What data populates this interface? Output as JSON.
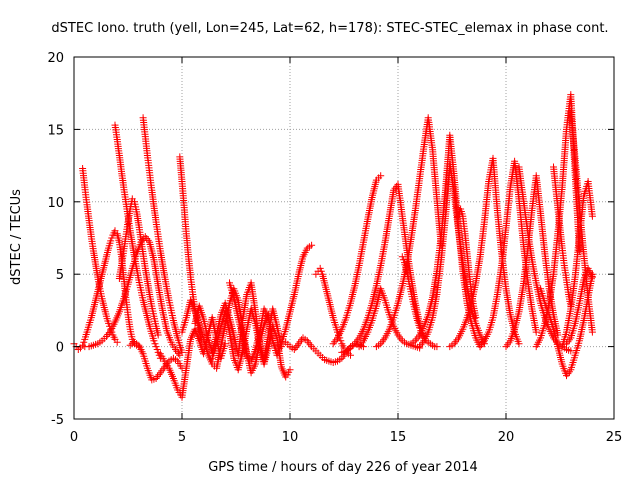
{
  "chart_data": {
    "type": "scatter",
    "title": "dSTEC Iono. truth (yell, Lon=245, Lat=62, h=178): STEC-STEC_elemax in phase cont.",
    "xlabel": "GPS time / hours of day 226 of year 2014",
    "ylabel": "dSTEC  / TECUs",
    "xlim": [
      0,
      25
    ],
    "ylim": [
      -5,
      20
    ],
    "xticks": [
      0,
      5,
      10,
      15,
      20,
      25
    ],
    "yticks": [
      -5,
      0,
      5,
      10,
      15,
      20
    ],
    "xtick_labels": [
      "0",
      "5",
      "10",
      "15",
      "20",
      "25"
    ],
    "ytick_labels": [
      "-5",
      "0",
      "5",
      "10",
      "15",
      "20"
    ],
    "grid": true,
    "marker": "+",
    "colors": {
      "series": "#ff0000",
      "grid": "#a0a0a0",
      "axis": "#000000"
    },
    "series": [
      {
        "x": [
          0.0,
          0.1,
          0.2,
          0.3,
          0.4,
          0.5,
          0.6,
          0.7,
          0.8,
          0.9,
          1.0,
          1.1,
          1.2,
          1.3,
          1.4,
          1.5,
          1.6,
          1.7,
          1.8,
          1.9,
          2.0,
          2.1,
          2.2,
          2.3,
          2.4,
          2.5,
          2.6,
          2.7,
          2.8,
          2.9,
          3.0
        ],
        "y": [
          0.2,
          0.0,
          -0.2,
          -0.1,
          0.1,
          0.5,
          1.0,
          1.5,
          2.0,
          2.6,
          3.2,
          3.8,
          4.4,
          5.0,
          5.6,
          6.2,
          6.8,
          7.3,
          7.7,
          8.0,
          7.8,
          7.2,
          6.2,
          4.8,
          3.4,
          2.2,
          1.2,
          0.5,
          0.2,
          0.1,
          0.0
        ]
      },
      {
        "x": [
          0.4,
          0.5,
          0.6,
          0.7,
          0.8,
          0.9,
          1.0,
          1.1,
          1.2,
          1.3,
          1.4,
          1.5,
          1.6,
          1.7,
          1.8,
          1.9,
          2.0
        ],
        "y": [
          12.3,
          11.0,
          9.8,
          8.7,
          7.6,
          6.6,
          5.7,
          4.8,
          4.0,
          3.3,
          2.7,
          2.1,
          1.6,
          1.2,
          0.8,
          0.5,
          0.3
        ]
      },
      {
        "x": [
          0.5,
          0.7,
          0.9,
          1.1,
          1.3,
          1.5,
          1.7,
          1.9,
          2.1,
          2.3,
          2.5,
          2.7,
          2.9,
          3.1,
          3.3,
          3.5,
          3.7,
          3.9,
          4.1,
          4.3,
          4.5,
          4.7,
          4.9
        ],
        "y": [
          0.0,
          0.0,
          0.1,
          0.2,
          0.4,
          0.7,
          1.1,
          1.7,
          2.4,
          3.3,
          4.3,
          5.4,
          6.4,
          7.2,
          7.6,
          7.2,
          6.0,
          4.2,
          2.5,
          1.1,
          0.3,
          -0.2,
          -0.6
        ]
      },
      {
        "x": [
          1.9,
          2.0,
          2.1,
          2.2,
          2.3,
          2.4,
          2.5,
          2.6,
          2.7,
          2.8,
          2.9,
          3.0,
          3.1,
          3.2,
          3.3,
          3.4,
          3.5,
          3.6,
          3.7,
          3.8,
          3.9,
          4.0
        ],
        "y": [
          15.3,
          14.3,
          13.2,
          12.1,
          11.0,
          10.0,
          9.0,
          8.0,
          7.1,
          6.2,
          5.4,
          4.6,
          3.9,
          3.2,
          2.6,
          2.0,
          1.4,
          0.9,
          0.4,
          0.0,
          -0.4,
          -0.8
        ]
      },
      {
        "x": [
          2.1,
          2.2,
          2.3,
          2.4,
          2.5,
          2.6,
          2.7,
          2.8,
          2.9,
          3.0,
          3.1,
          3.2,
          3.3,
          3.4,
          3.5,
          3.6,
          3.7,
          3.8,
          3.9
        ],
        "y": [
          4.7,
          5.6,
          6.6,
          7.6,
          8.6,
          9.5,
          10.2,
          10.0,
          9.3,
          8.4,
          7.4,
          6.4,
          5.4,
          4.5,
          3.6,
          2.8,
          2.1,
          1.4,
          0.8
        ]
      },
      {
        "x": [
          3.2,
          3.3,
          3.4,
          3.5,
          3.6,
          3.7,
          3.8,
          3.9,
          4.0,
          4.1,
          4.2,
          4.3,
          4.4,
          4.5,
          4.6,
          4.7,
          4.8,
          4.9,
          5.0
        ],
        "y": [
          15.8,
          14.5,
          13.2,
          12.0,
          10.8,
          9.7,
          8.6,
          7.6,
          6.6,
          5.7,
          4.8,
          4.0,
          3.2,
          2.5,
          1.8,
          1.2,
          0.6,
          0.1,
          -0.4
        ]
      },
      {
        "x": [
          2.6,
          2.8,
          3.0,
          3.2,
          3.4,
          3.6,
          3.8,
          4.0,
          4.2,
          4.4,
          4.6,
          4.8,
          5.0
        ],
        "y": [
          0.1,
          0.3,
          0.1,
          -0.5,
          -1.5,
          -2.3,
          -2.2,
          -1.8,
          -1.4,
          -1.0,
          -0.8,
          -1.0,
          -1.5
        ]
      },
      {
        "x": [
          4.0,
          4.2,
          4.4,
          4.6,
          4.8,
          5.0,
          5.2,
          5.4,
          5.6,
          5.8,
          6.0,
          6.2,
          6.4,
          6.6,
          6.8,
          7.0
        ],
        "y": [
          -0.5,
          -1.0,
          -1.5,
          -2.2,
          -3.0,
          -3.5,
          -1.5,
          0.5,
          1.2,
          0.4,
          -0.5,
          0.8,
          2.0,
          0.5,
          -0.8,
          0.2
        ]
      },
      {
        "x": [
          4.9,
          5.0,
          5.1,
          5.2,
          5.3,
          5.4,
          5.5,
          5.6,
          5.7,
          5.8,
          5.9
        ],
        "y": [
          13.1,
          11.4,
          9.6,
          7.8,
          6.2,
          4.8,
          3.6,
          2.6,
          1.8,
          1.1,
          0.5
        ]
      },
      {
        "x": [
          5.0,
          5.2,
          5.4,
          5.6,
          5.8,
          6.0,
          6.2,
          6.4,
          6.6,
          6.8,
          7.0,
          7.2,
          7.4,
          7.6,
          7.8,
          8.0,
          8.2,
          8.4,
          8.6,
          8.8,
          9.0
        ],
        "y": [
          1.0,
          2.0,
          3.2,
          2.5,
          1.5,
          0.5,
          -0.5,
          -1.2,
          -1.5,
          0.0,
          1.5,
          3.0,
          4.0,
          3.2,
          1.5,
          -0.5,
          -1.8,
          -1.2,
          0.3,
          1.5,
          2.2
        ]
      },
      {
        "x": [
          5.6,
          5.8,
          6.0,
          6.2,
          6.4,
          6.6,
          6.8,
          7.0,
          7.2,
          7.4,
          7.6,
          7.8,
          8.0,
          8.2,
          8.4,
          8.6,
          8.8,
          9.0,
          9.2,
          9.4,
          9.6
        ],
        "y": [
          1.6,
          2.8,
          1.9,
          0.6,
          -0.4,
          0.8,
          2.2,
          3.0,
          2.0,
          0.8,
          -0.6,
          1.8,
          3.6,
          4.4,
          2.4,
          0.2,
          -1.0,
          0.8,
          2.6,
          1.4,
          0.0
        ]
      },
      {
        "x": [
          6.4,
          6.6,
          6.8,
          7.0,
          7.2,
          7.4,
          7.6,
          7.8,
          8.0,
          8.2,
          8.4,
          8.6,
          8.8,
          9.0,
          9.2,
          9.4,
          9.6,
          9.8,
          10.0
        ],
        "y": [
          -0.8,
          0.2,
          1.4,
          2.4,
          1.0,
          -0.8,
          -1.6,
          -0.4,
          1.2,
          2.6,
          1.6,
          0.0,
          -1.2,
          0.0,
          1.4,
          0.6,
          -1.4,
          -2.1,
          -1.6
        ]
      },
      {
        "x": [
          7.2,
          7.4,
          7.6,
          7.8,
          8.0,
          8.2,
          8.4,
          8.6,
          8.8,
          9.0,
          9.2,
          9.4,
          9.6,
          9.8,
          10.0,
          10.2,
          10.4,
          10.6,
          10.8,
          11.0
        ],
        "y": [
          4.4,
          3.4,
          2.0,
          0.8,
          -0.6,
          -1.0,
          -0.2,
          1.0,
          2.6,
          2.0,
          0.4,
          -0.6,
          0.2,
          1.2,
          2.4,
          3.6,
          5.0,
          6.2,
          6.8,
          7.0
        ]
      },
      {
        "x": [
          9.8,
          10.0,
          10.2,
          10.4,
          10.6,
          10.8,
          11.0,
          11.2,
          11.4,
          11.6,
          11.8,
          12.0,
          12.2,
          12.4,
          12.6,
          12.8,
          13.0,
          13.2,
          13.4
        ],
        "y": [
          0.3,
          0.0,
          -0.2,
          0.2,
          0.6,
          0.4,
          0.0,
          -0.3,
          -0.6,
          -0.9,
          -1.0,
          -1.1,
          -1.0,
          -0.8,
          -0.4,
          0.0,
          0.2,
          0.1,
          0.0
        ]
      },
      {
        "x": [
          11.2,
          11.3,
          11.4,
          11.5,
          11.6,
          11.7,
          11.8,
          11.9,
          12.0,
          12.1,
          12.2,
          12.3,
          12.4,
          12.5,
          12.6,
          12.7,
          12.8
        ],
        "y": [
          5.0,
          5.2,
          5.4,
          5.0,
          4.4,
          3.8,
          3.2,
          2.6,
          2.0,
          1.5,
          1.0,
          0.6,
          0.2,
          -0.1,
          -0.3,
          -0.5,
          -0.6
        ]
      },
      {
        "x": [
          12.0,
          12.2,
          12.4,
          12.6,
          12.8,
          13.0,
          13.2,
          13.4,
          13.6,
          13.8,
          14.0,
          14.2
        ],
        "y": [
          0.2,
          0.6,
          1.2,
          2.0,
          3.0,
          4.2,
          5.6,
          7.2,
          8.8,
          10.3,
          11.5,
          11.8
        ]
      },
      {
        "x": [
          12.4,
          12.6,
          12.8,
          13.0,
          13.2,
          13.4,
          13.6,
          13.8,
          14.0,
          14.2,
          14.4,
          14.6,
          14.8,
          15.0,
          15.2,
          15.4,
          15.6,
          15.8,
          16.0,
          16.2
        ],
        "y": [
          -0.4,
          -0.3,
          -0.1,
          0.2,
          0.6,
          1.2,
          2.0,
          3.0,
          4.2,
          5.6,
          7.2,
          9.0,
          10.8,
          11.2,
          9.0,
          6.8,
          4.8,
          3.0,
          1.6,
          0.6
        ]
      },
      {
        "x": [
          13.2,
          13.4,
          13.6,
          13.8,
          14.0,
          14.2,
          14.4,
          14.6,
          14.8,
          15.0,
          15.2,
          15.4,
          15.6,
          15.8,
          16.0
        ],
        "y": [
          0.0,
          0.4,
          1.0,
          1.8,
          2.8,
          4.0,
          3.2,
          2.2,
          1.4,
          0.8,
          0.4,
          0.2,
          0.1,
          0.0,
          -0.1
        ]
      },
      {
        "x": [
          14.0,
          14.2,
          14.4,
          14.6,
          14.8,
          15.0,
          15.2,
          15.4,
          15.6,
          15.8,
          16.0,
          16.2,
          16.4,
          16.6,
          16.8,
          17.0
        ],
        "y": [
          0.0,
          0.2,
          0.6,
          1.2,
          2.0,
          3.0,
          4.2,
          5.6,
          7.4,
          9.4,
          11.6,
          13.8,
          15.8,
          13.6,
          10.2,
          7.0
        ]
      },
      {
        "x": [
          15.2,
          15.3,
          15.4,
          15.5,
          15.6,
          15.7,
          15.8,
          15.9,
          16.0,
          16.1,
          16.2,
          16.3,
          16.4,
          16.5,
          16.6,
          16.7,
          16.8
        ],
        "y": [
          6.2,
          5.8,
          5.2,
          4.5,
          3.8,
          3.1,
          2.4,
          1.8,
          1.3,
          0.9,
          0.6,
          0.4,
          0.3,
          0.2,
          0.1,
          0.0,
          0.0
        ]
      },
      {
        "x": [
          15.6,
          15.8,
          16.0,
          16.2,
          16.4,
          16.6,
          16.8,
          17.0,
          17.2,
          17.4,
          17.6,
          17.8,
          18.0,
          18.2,
          18.4,
          18.6,
          18.8
        ],
        "y": [
          0.2,
          0.4,
          0.8,
          1.4,
          2.2,
          3.4,
          5.2,
          7.6,
          10.8,
          14.6,
          11.8,
          8.2,
          5.2,
          3.0,
          1.6,
          0.6,
          0.0
        ]
      },
      {
        "x": [
          16.0,
          16.2,
          16.4,
          16.6,
          16.8,
          17.0,
          17.2,
          17.4,
          17.6,
          17.8,
          18.0,
          18.2,
          18.4,
          18.6,
          18.8,
          19.0
        ],
        "y": [
          0.0,
          0.4,
          1.0,
          2.0,
          3.6,
          6.0,
          9.0,
          12.6,
          10.6,
          8.0,
          5.8,
          4.0,
          2.6,
          1.6,
          0.8,
          0.2
        ]
      },
      {
        "x": [
          17.8,
          17.9,
          18.0,
          18.1,
          18.2,
          18.3,
          18.4,
          18.5,
          18.6
        ],
        "y": [
          9.0,
          9.5,
          9.0,
          7.8,
          6.4,
          5.0,
          3.8,
          2.8,
          2.0
        ]
      },
      {
        "x": [
          17.4,
          17.6,
          17.8,
          18.0,
          18.2,
          18.4,
          18.6,
          18.8,
          19.0,
          19.2,
          19.4,
          19.6,
          19.8,
          20.0,
          20.2,
          20.4,
          20.6
        ],
        "y": [
          0.0,
          0.2,
          0.6,
          1.2,
          2.0,
          3.0,
          4.4,
          6.2,
          8.6,
          11.4,
          13.0,
          9.4,
          6.4,
          4.0,
          2.2,
          1.0,
          0.2
        ]
      },
      {
        "x": [
          18.8,
          19.0,
          19.2,
          19.4,
          19.6,
          19.8,
          20.0,
          20.2,
          20.4,
          20.6,
          20.8,
          21.0,
          21.2,
          21.4
        ],
        "y": [
          0.0,
          0.4,
          1.0,
          2.0,
          3.6,
          5.6,
          8.2,
          11.0,
          12.8,
          10.2,
          7.2,
          4.6,
          2.6,
          1.0
        ]
      },
      {
        "x": [
          20.0,
          20.2,
          20.4,
          20.6,
          20.8,
          21.0,
          21.2,
          21.4,
          21.6,
          21.8,
          22.0,
          22.2,
          22.4
        ],
        "y": [
          0.0,
          0.4,
          1.2,
          2.4,
          4.2,
          6.6,
          9.4,
          11.8,
          9.2,
          6.4,
          4.0,
          2.2,
          0.8
        ]
      },
      {
        "x": [
          20.6,
          20.8,
          21.0,
          21.2,
          21.4,
          21.6,
          21.8,
          22.0,
          22.2,
          22.4,
          22.6,
          22.8,
          23.0
        ],
        "y": [
          12.4,
          10.2,
          8.0,
          6.0,
          4.4,
          3.0,
          2.0,
          1.2,
          0.6,
          0.2,
          0.0,
          -0.2,
          -0.3
        ]
      },
      {
        "x": [
          21.4,
          21.6,
          21.8,
          22.0,
          22.2,
          22.4,
          22.6,
          22.8,
          23.0,
          23.2,
          23.4
        ],
        "y": [
          0.0,
          0.6,
          1.6,
          3.0,
          5.0,
          7.8,
          11.0,
          15.0,
          17.4,
          12.0,
          6.6
        ]
      },
      {
        "x": [
          21.6,
          21.8,
          22.0,
          22.2,
          22.4,
          22.6,
          22.8,
          23.0,
          23.2,
          23.4,
          23.6,
          23.8,
          24.0
        ],
        "y": [
          4.0,
          3.0,
          2.2,
          1.2,
          0.0,
          -1.2,
          -2.0,
          -1.6,
          -0.6,
          0.4,
          1.8,
          3.4,
          5.0
        ]
      },
      {
        "x": [
          22.2,
          22.3,
          22.4,
          22.5,
          22.6,
          22.7,
          22.8,
          22.9,
          23.0
        ],
        "y": [
          12.4,
          11.0,
          9.6,
          8.2,
          6.8,
          5.6,
          4.6,
          3.6,
          2.8
        ]
      },
      {
        "x": [
          22.6,
          22.8,
          23.0,
          23.2,
          23.4,
          23.6,
          23.8,
          24.0
        ],
        "y": [
          0.0,
          1.0,
          2.6,
          4.8,
          7.6,
          10.4,
          11.4,
          9.0
        ]
      },
      {
        "x": [
          23.0,
          23.2,
          23.4,
          23.6,
          23.8,
          24.0
        ],
        "y": [
          16.2,
          13.0,
          9.6,
          6.4,
          3.4,
          1.0
        ]
      },
      {
        "x": [
          22.8,
          23.0,
          23.2,
          23.4,
          23.6,
          23.8,
          24.0
        ],
        "y": [
          0.2,
          0.6,
          1.6,
          3.0,
          4.6,
          5.4,
          4.8
        ]
      }
    ]
  }
}
